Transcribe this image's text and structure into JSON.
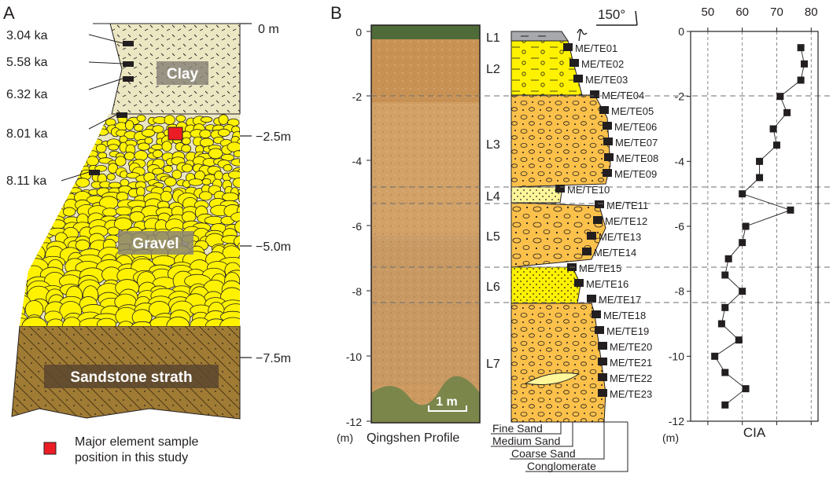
{
  "panel_a": {
    "label": "A",
    "depth_labels": [
      "0 m",
      "−2.5m",
      "−5.0m",
      "−7.5m"
    ],
    "ages": [
      "3.04 ka",
      "5.58 ka",
      "6.32 ka",
      "8.01 ka",
      "8.11 ka"
    ],
    "units": [
      "Clay",
      "Gravel",
      "Sandstone strath"
    ],
    "legend": "Major element sample\nposition in this study",
    "colors": {
      "clay": "#ece7c3",
      "gravel": "#fff200",
      "sandstone": "#a07b34",
      "sample": "#ec1c24"
    }
  },
  "panel_b": {
    "label": "B",
    "photo_caption": "Qingshen Profile",
    "scale_bar": "1 m",
    "depth_unit": "(m)",
    "depth_ticks": [
      "0",
      "-2",
      "-4",
      "-6",
      "-8",
      "-10",
      "-12"
    ],
    "angle": "150°",
    "layers": [
      "L1",
      "L2",
      "L3",
      "L4",
      "L5",
      "L6",
      "L7"
    ],
    "samples": [
      "ME/TE01",
      "ME/TE02",
      "ME/TE03",
      "ME/TE04",
      "ME/TE05",
      "ME/TE06",
      "ME/TE07",
      "ME/TE08",
      "ME/TE09",
      "ME/TE10",
      "ME/TE11",
      "ME/TE12",
      "ME/TE13",
      "ME/TE14",
      "ME/TE15",
      "ME/TE16",
      "ME/TE17",
      "ME/TE18",
      "ME/TE19",
      "ME/TE20",
      "ME/TE21",
      "ME/TE22",
      "ME/TE23"
    ],
    "grain_sizes": [
      "Fine Sand",
      "Medium Sand",
      "Coarse Sand",
      "Conglomerate"
    ],
    "colors": {
      "sediment": "#fcc14a",
      "sand": "#fff799",
      "photo": "#cc9a60"
    }
  },
  "chart_data": {
    "type": "line",
    "xlabel": "CIA",
    "ylabel": "(m)",
    "x_ticks": [
      "50",
      "60",
      "70",
      "80"
    ],
    "y_ticks": [
      "0",
      "-2",
      "-4",
      "-6",
      "-8",
      "-10",
      "-12"
    ],
    "xlim": [
      45,
      82
    ],
    "ylim": [
      -12,
      0
    ],
    "grid": true,
    "series": [
      {
        "x": [
          77,
          78,
          77,
          71,
          73,
          69,
          70,
          65,
          65,
          60,
          74,
          61,
          60,
          56,
          55,
          60,
          55,
          54,
          59,
          52,
          55,
          61,
          55
        ],
        "y": [
          -0.5,
          -1.0,
          -1.5,
          -2.0,
          -2.5,
          -3.0,
          -3.5,
          -4.0,
          -4.5,
          -5.0,
          -5.5,
          -6.0,
          -6.5,
          -7.0,
          -7.5,
          -8.0,
          -8.5,
          -9.0,
          -9.5,
          -10.0,
          -10.5,
          -11.0,
          -11.5
        ]
      }
    ]
  }
}
